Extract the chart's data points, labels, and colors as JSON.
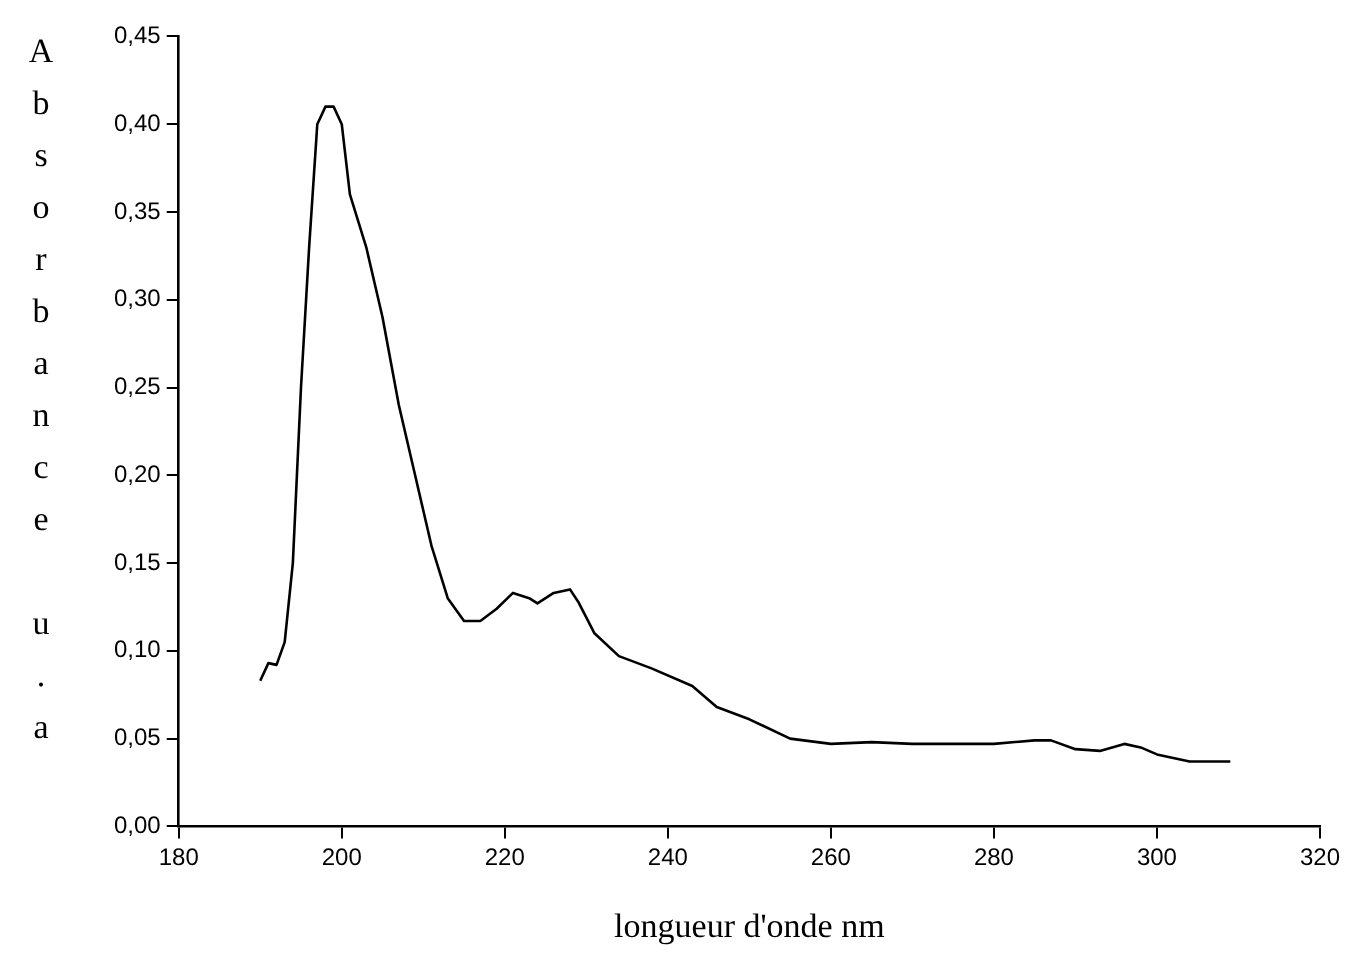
{
  "chart_data": {
    "type": "line",
    "xlabel": "longueur d'onde nm",
    "ylabel": "Absorbance u.a",
    "x": [
      190,
      191,
      192,
      193,
      194,
      195,
      196,
      197,
      198,
      199,
      200,
      201,
      203,
      205,
      207,
      209,
      211,
      213,
      215,
      217,
      219,
      221,
      223,
      224,
      226,
      228,
      229,
      231,
      234,
      238,
      243,
      246,
      250,
      255,
      260,
      265,
      270,
      280,
      285,
      287,
      290,
      293,
      296,
      298,
      300,
      304,
      309
    ],
    "series": [
      {
        "color": "#000000",
        "values": [
          0.083,
          0.093,
          0.092,
          0.105,
          0.15,
          0.25,
          0.33,
          0.4,
          0.41,
          0.41,
          0.4,
          0.36,
          0.33,
          0.29,
          0.24,
          0.2,
          0.16,
          0.13,
          0.117,
          0.117,
          0.124,
          0.133,
          0.13,
          0.127,
          0.133,
          0.135,
          0.128,
          0.11,
          0.097,
          0.09,
          0.08,
          0.068,
          0.061,
          0.05,
          0.047,
          0.048,
          0.047,
          0.047,
          0.049,
          0.049,
          0.044,
          0.043,
          0.047,
          0.045,
          0.041,
          0.037,
          0.037
        ]
      }
    ],
    "xlim": [
      180,
      320
    ],
    "xticks": [
      180,
      200,
      220,
      240,
      260,
      280,
      300,
      320
    ],
    "ylim": [
      0,
      0.45
    ],
    "yticks": [
      {
        "value": 0,
        "label": "0,00"
      },
      {
        "value": 0.05,
        "label": "0,05"
      },
      {
        "value": 0.1,
        "label": "0,10"
      },
      {
        "value": 0.15,
        "label": "0,15"
      },
      {
        "value": 0.2,
        "label": "0,20"
      },
      {
        "value": 0.25,
        "label": "0,25"
      },
      {
        "value": 0.3,
        "label": "0,30"
      },
      {
        "value": 0.35,
        "label": "0,35"
      },
      {
        "value": 0.4,
        "label": "0,40"
      },
      {
        "value": 0.45,
        "label": "0,45"
      }
    ],
    "grid": false,
    "legend": false,
    "marker": "none",
    "line_style": "solid"
  }
}
